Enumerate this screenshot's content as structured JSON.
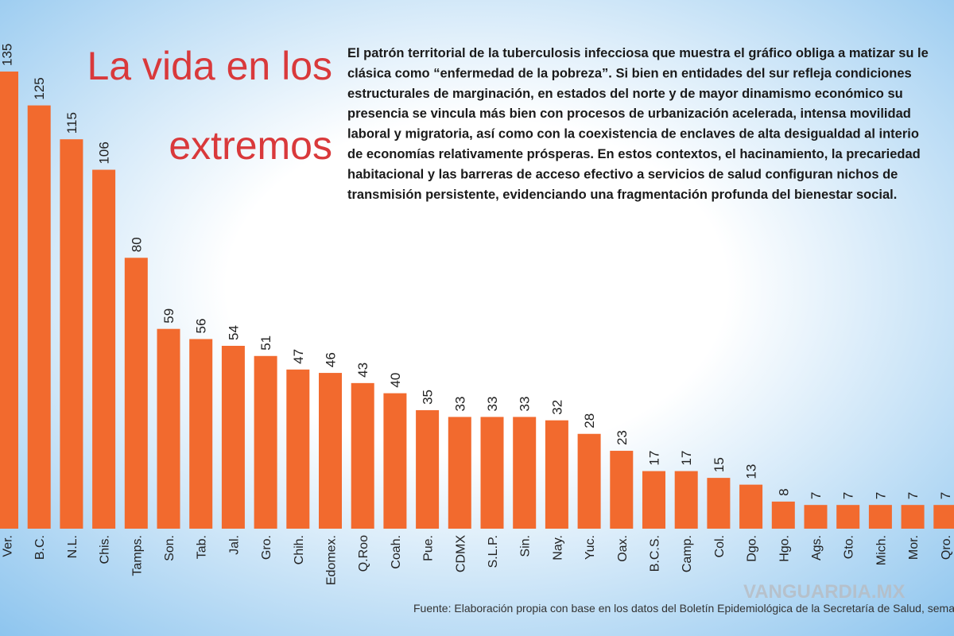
{
  "chart_data": {
    "type": "bar",
    "title_lines": [
      "La vida en los",
      "extremos"
    ],
    "text_lines": [
      "El patrón territorial de la tuberculosis infecciosa que muestra el gráfico obliga a matizar su le",
      "clásica como “enfermedad de la pobreza”. Si bien en entidades del sur refleja condiciones",
      "estructurales de marginación, en estados del norte y de mayor dinamismo económico su",
      "presencia se vincula más bien con procesos de urbanización acelerada, intensa movilidad",
      "laboral y migratoria, así como con la coexistencia de enclaves de alta desigualdad al interio",
      "de economías relativamente prósperas. En estos contextos, el hacinamiento, la precariedad",
      "habitacional y las barreras de acceso efectivo a servicios de salud configuran nichos de",
      "transmisión persistente, evidenciando una fragmentación profunda del bienestar social."
    ],
    "categories": [
      "Ver.",
      "B.C.",
      "N.L.",
      "Chis.",
      "Tamps.",
      "Son.",
      "Tab.",
      "Jal.",
      "Gro.",
      "Chih.",
      "Edomex.",
      "Q.Roo",
      "Coah.",
      "Pue.",
      "CDMX",
      "S.L.P.",
      "Sin.",
      "Nay.",
      "Yuc.",
      "Oax.",
      "B.C.S.",
      "Camp.",
      "Col.",
      "Dgo.",
      "Hgo.",
      "Ags.",
      "Gto.",
      "Mich.",
      "Mor.",
      "Qro."
    ],
    "values": [
      135,
      125,
      115,
      106,
      80,
      59,
      56,
      54,
      51,
      47,
      46,
      43,
      40,
      35,
      33,
      33,
      33,
      32,
      28,
      23,
      17,
      17,
      15,
      13,
      8,
      7,
      7,
      7,
      7,
      7
    ],
    "color": "#f26a2e",
    "ylim": [
      0,
      135
    ],
    "source": "Fuente: Elaboración propia con base en los datos del Boletín Epidemiológica de la Secretaría de Salud, sema",
    "watermark": "VANGUARDIA.MX"
  }
}
